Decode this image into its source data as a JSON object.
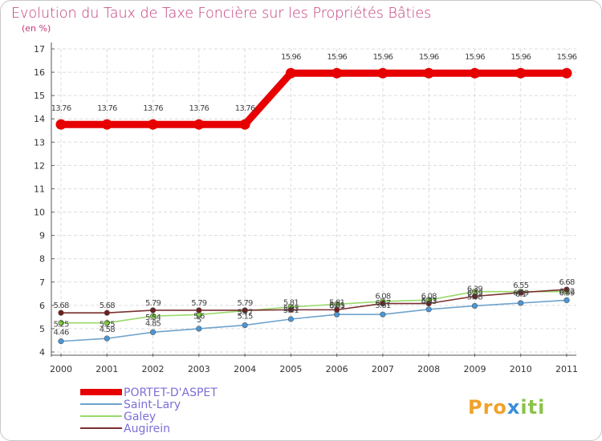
{
  "chart_data": {
    "type": "line",
    "title": "Evolution du Taux de Taxe Foncière sur les Propriétés Bâties",
    "subtitle": "(en %)",
    "x": [
      "2000",
      "2001",
      "2002",
      "2003",
      "2004",
      "2005",
      "2006",
      "2007",
      "2008",
      "2009",
      "2010",
      "2011"
    ],
    "ylim": [
      4,
      17
    ],
    "yticks": [
      4,
      5,
      6,
      7,
      8,
      9,
      10,
      11,
      12,
      13,
      14,
      15,
      16,
      17
    ],
    "series": [
      {
        "name": "PORTET-D'ASPET",
        "color": "#e60000",
        "marker": "#e60000",
        "values": [
          13.76,
          13.76,
          13.76,
          13.76,
          13.76,
          15.96,
          15.96,
          15.96,
          15.96,
          15.96,
          15.96,
          15.96
        ],
        "labels": [
          "13.76",
          "13.76",
          "13.76",
          "13.76",
          "13.76",
          "15.96",
          "15.96",
          "15.96",
          "15.96",
          "15.96",
          "15.96",
          "15.96"
        ]
      },
      {
        "name": "Saint-Lary",
        "color": "#6fa3cc",
        "marker": "#4a97d6",
        "values": [
          4.46,
          4.58,
          4.85,
          5.0,
          5.15,
          5.41,
          5.61,
          5.61,
          5.83,
          5.98,
          6.1,
          6.22
        ],
        "labels": [
          "4.46",
          "4.58",
          "4.85",
          "5",
          "5.15",
          "5.41",
          "5.61",
          "5.61",
          "5.83",
          "5.98",
          "6.1",
          "6.22"
        ]
      },
      {
        "name": "Galey",
        "color": "#99d96a",
        "marker": "#7cd43a",
        "values": [
          5.25,
          5.25,
          5.54,
          5.6,
          5.77,
          5.93,
          6.05,
          6.17,
          6.23,
          6.59,
          6.59,
          6.59
        ],
        "labels": [
          "5.25",
          "5.25",
          "5.54",
          "5.6",
          "5.77",
          "5.93",
          "6.05",
          "6.17",
          "6.23",
          "6.59",
          "6.59",
          "6.59"
        ]
      },
      {
        "name": "Augirein",
        "color": "#7a2e2e",
        "marker": "#6e1e1e",
        "values": [
          5.68,
          5.68,
          5.79,
          5.79,
          5.79,
          5.81,
          5.81,
          6.08,
          6.08,
          6.39,
          6.55,
          6.68
        ],
        "labels": [
          "5.68",
          "5.68",
          "5.79",
          "5.79",
          "5.79",
          "5.81",
          "5.81",
          "6.08",
          "6.08",
          "6.39",
          "6.55",
          "6.68"
        ]
      }
    ],
    "legend_position": "bottom-left",
    "grid": true
  },
  "brand": {
    "prefix": "Pro",
    "x": "x",
    "suffix": "iti"
  }
}
